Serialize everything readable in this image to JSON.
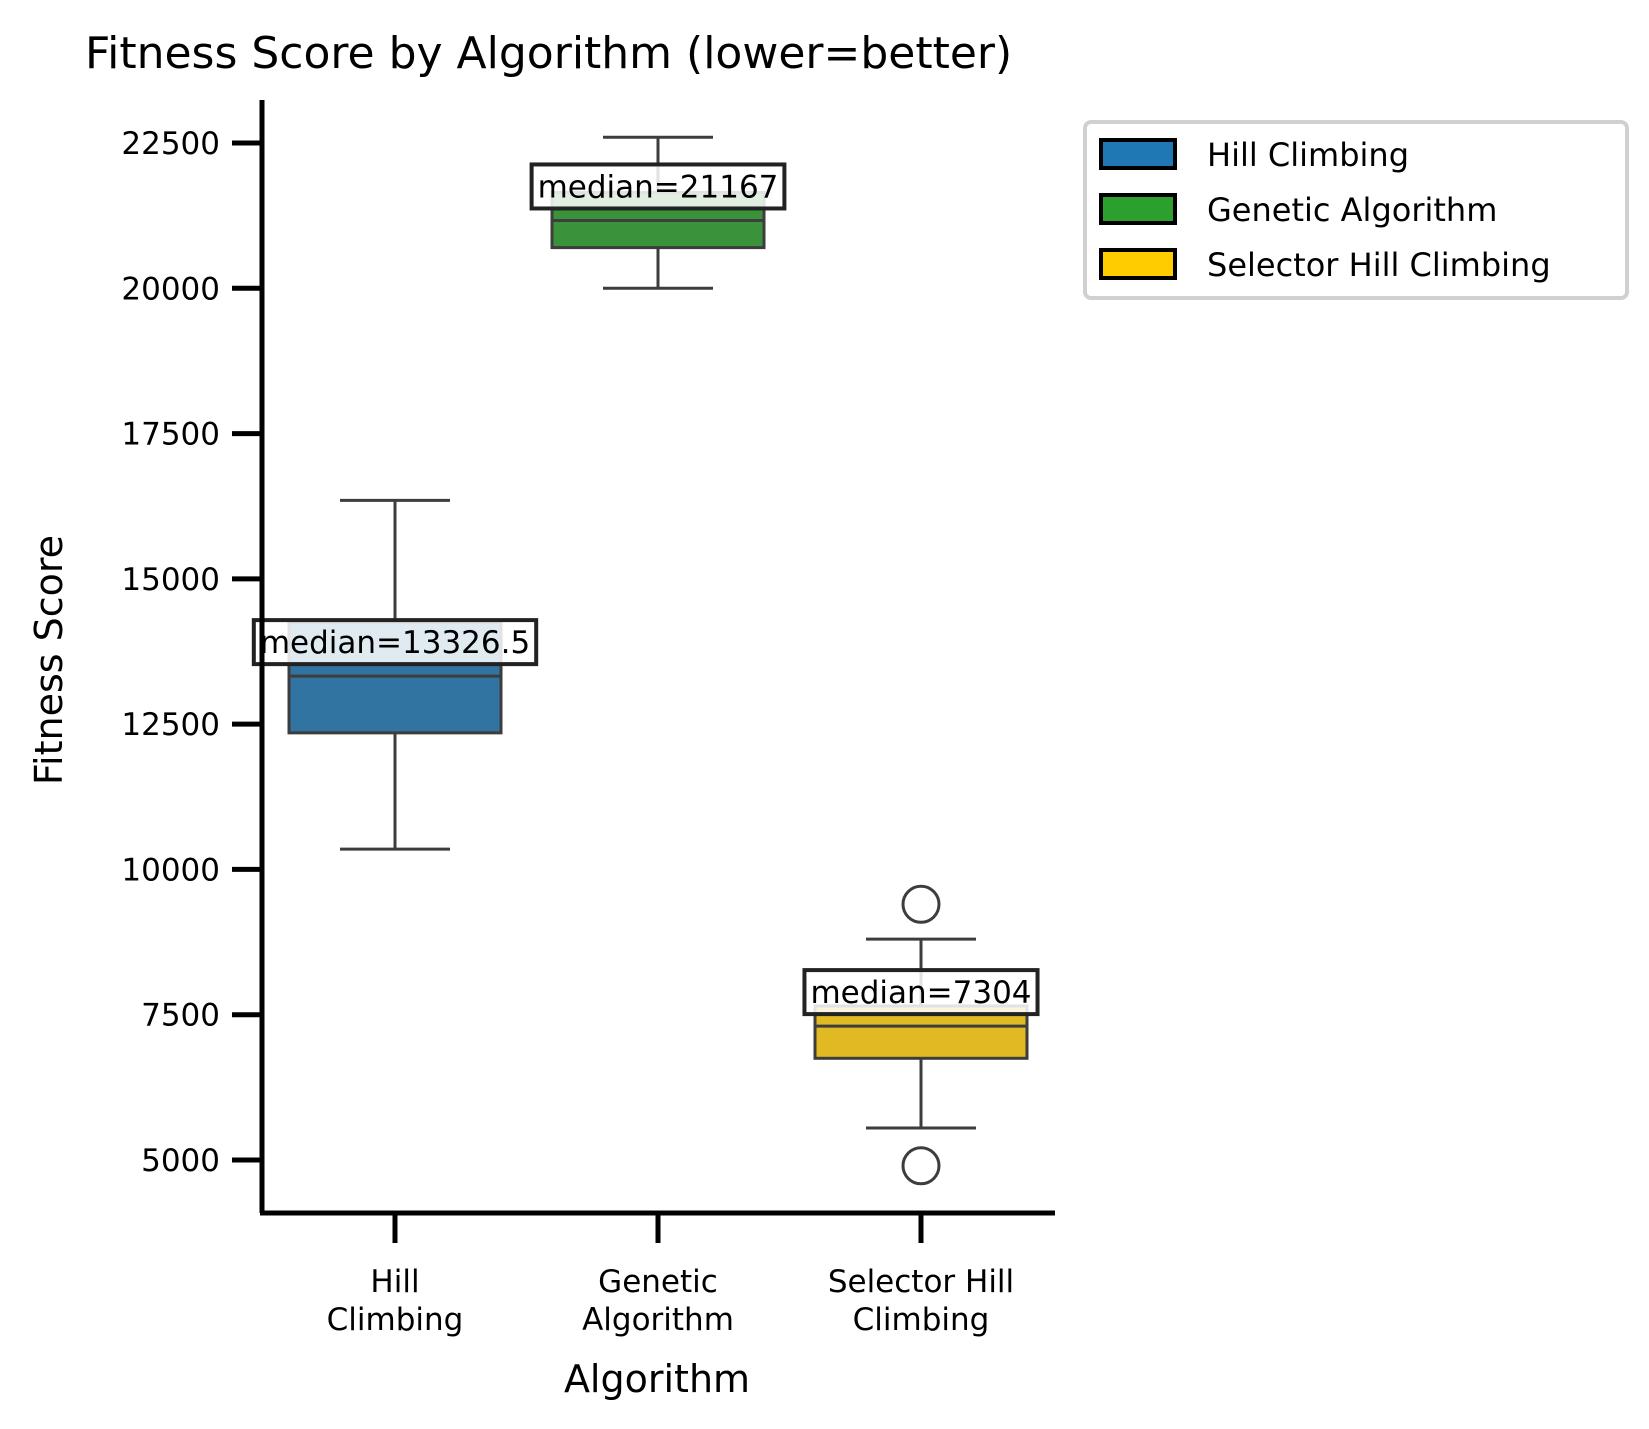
{
  "chart_data": {
    "type": "box",
    "title": "Fitness Score by Algorithm (lower=better)",
    "xlabel": "Algorithm",
    "ylabel": "Fitness Score",
    "ylim": [
      4000,
      23500
    ],
    "yticks": [
      5000,
      7500,
      10000,
      12500,
      15000,
      17500,
      20000,
      22500
    ],
    "grid": false,
    "legend_position": "outside top-right",
    "categories": [
      {
        "name": "Hill Climbing",
        "tick_lines": [
          "Hill",
          "Climbing"
        ]
      },
      {
        "name": "Genetic Algorithm",
        "tick_lines": [
          "Genetic",
          "Algorithm"
        ]
      },
      {
        "name": "Selector Hill Climbing",
        "tick_lines": [
          "Selector Hill",
          "Climbing"
        ]
      }
    ],
    "series": [
      {
        "name": "Hill Climbing",
        "color": "#1f77b4",
        "box_color": "#3274a1",
        "whisker_low": 10350,
        "q1": 12350,
        "median": 13326.5,
        "q3": 14250,
        "whisker_high": 16350,
        "outliers": [],
        "median_label": "median=13326.5"
      },
      {
        "name": "Genetic Algorithm",
        "color": "#2ca02c",
        "box_color": "#3a923a",
        "whisker_low": 20000,
        "q1": 20700,
        "median": 21167,
        "q3": 21650,
        "whisker_high": 22600,
        "outliers": [],
        "median_label": "median=21167"
      },
      {
        "name": "Selector Hill Climbing",
        "color": "#ffcc00",
        "box_color": "#e1b923",
        "whisker_low": 5550,
        "q1": 6750,
        "median": 7304,
        "q3": 7650,
        "whisker_high": 8800,
        "outliers": [
          9400,
          4900
        ],
        "median_label": "median=7304"
      }
    ]
  }
}
